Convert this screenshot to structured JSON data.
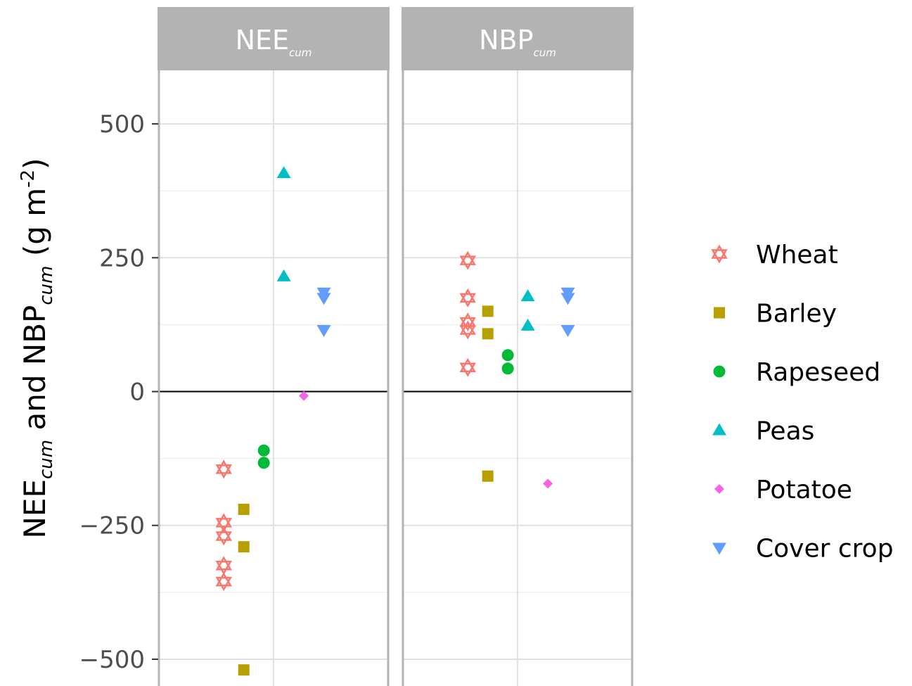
{
  "chart_data": {
    "type": "scatter",
    "ylabel": {
      "p1": "NEE",
      "p1_sub": "cum",
      "mid": " and NBP",
      "p2_sub": "cum",
      "units_a": " (g m",
      "units_sup": "-2",
      "units_b": ")"
    },
    "ylim": [
      -550,
      600
    ],
    "y_ticks": [
      {
        "value": 500,
        "label": "500"
      },
      {
        "value": 250,
        "label": "250"
      },
      {
        "value": 0,
        "label": "0"
      },
      {
        "value": -250,
        "label": "−250"
      },
      {
        "value": -500,
        "label": "−500"
      }
    ],
    "grid": true,
    "panels": [
      {
        "key": "nee",
        "title": "NEE",
        "title_sub": "cum"
      },
      {
        "key": "nbp",
        "title": "NBP",
        "title_sub": "cum"
      }
    ],
    "legend_position": "right",
    "series": [
      {
        "name": "Wheat",
        "shape": "star",
        "color": "#F8766D",
        "x": 1,
        "nee": [
          -145,
          -245,
          -270,
          -325,
          -355
        ],
        "nbp": [
          245,
          175,
          130,
          115,
          45
        ]
      },
      {
        "name": "Barley",
        "shape": "square",
        "color": "#B79F00",
        "x": 2,
        "nee": [
          -220,
          -290,
          -520
        ],
        "nbp": [
          150,
          108,
          -158
        ]
      },
      {
        "name": "Rapeseed",
        "shape": "circle",
        "color": "#00BA38",
        "x": 3,
        "nee": [
          -110,
          -133
        ],
        "nbp": [
          68,
          43
        ]
      },
      {
        "name": "Peas",
        "shape": "triangle-up",
        "color": "#00BFC4",
        "x": 4,
        "nee": [
          408,
          215
        ],
        "nbp": [
          178,
          123
        ]
      },
      {
        "name": "Potatoe",
        "shape": "diamond",
        "color": "#F564E3",
        "x": 5,
        "nee": [
          -8
        ],
        "nbp": [
          -172
        ]
      },
      {
        "name": "Cover crop",
        "shape": "triangle-down",
        "color": "#619CFF",
        "x": 6,
        "nee": [
          185,
          175,
          115
        ],
        "nbp": [
          185,
          175,
          115
        ]
      }
    ]
  }
}
